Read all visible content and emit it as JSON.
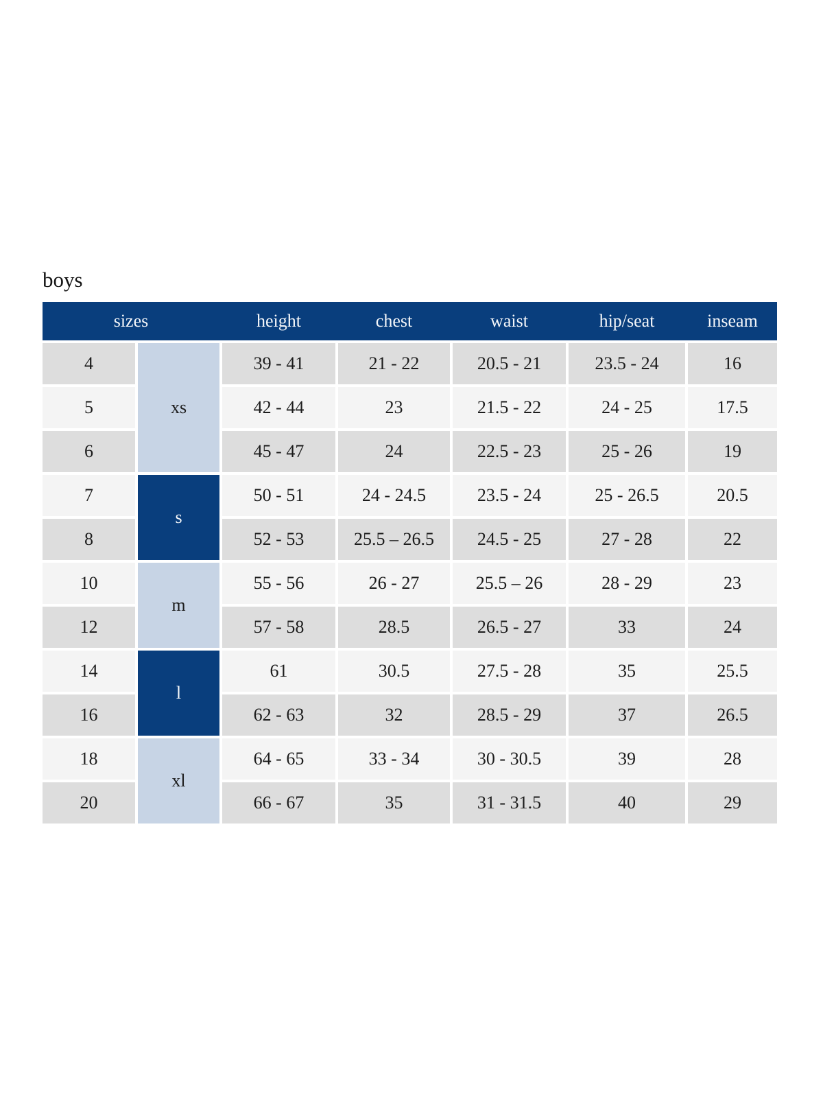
{
  "page": {
    "title": "boys"
  },
  "table": {
    "headers": [
      "sizes",
      "height",
      "chest",
      "waist",
      "hip/seat",
      "inseam"
    ],
    "groups": [
      {
        "label": "xs",
        "span": 3,
        "variant": "light"
      },
      {
        "label": "s",
        "span": 2,
        "variant": "dark"
      },
      {
        "label": "m",
        "span": 2,
        "variant": "light"
      },
      {
        "label": "l",
        "span": 2,
        "variant": "dark"
      },
      {
        "label": "xl",
        "span": 2,
        "variant": "light"
      }
    ],
    "rows": [
      {
        "size": "4",
        "cells": [
          "39 - 41",
          "21 - 22",
          "20.5 - 21",
          "23.5 - 24",
          "16"
        ]
      },
      {
        "size": "5",
        "cells": [
          "42 - 44",
          "23",
          "21.5 - 22",
          "24 - 25",
          "17.5"
        ]
      },
      {
        "size": "6",
        "cells": [
          "45 - 47",
          "24",
          "22.5 - 23",
          "25 - 26",
          "19"
        ]
      },
      {
        "size": "7",
        "cells": [
          "50 - 51",
          "24 - 24.5",
          "23.5 - 24",
          "25 - 26.5",
          "20.5"
        ]
      },
      {
        "size": "8",
        "cells": [
          "52 - 53",
          "25.5 – 26.5",
          "24.5 - 25",
          "27 - 28",
          "22"
        ]
      },
      {
        "size": "10",
        "cells": [
          "55 - 56",
          "26 - 27",
          "25.5 – 26",
          "28 - 29",
          "23"
        ]
      },
      {
        "size": "12",
        "cells": [
          "57 - 58",
          "28.5",
          "26.5 - 27",
          "33",
          "24"
        ]
      },
      {
        "size": "14",
        "cells": [
          "61",
          "30.5",
          "27.5 - 28",
          "35",
          "25.5"
        ]
      },
      {
        "size": "16",
        "cells": [
          "62 - 63",
          "32",
          "28.5 - 29",
          "37",
          "26.5"
        ]
      },
      {
        "size": "18",
        "cells": [
          "64 - 65",
          "33 - 34",
          "30 - 30.5",
          "39",
          "28"
        ]
      },
      {
        "size": "20",
        "cells": [
          "66 - 67",
          "35",
          "31 - 31.5",
          "40",
          "29"
        ]
      }
    ]
  },
  "colors": {
    "header_bg": "#093E7D",
    "group_dark_bg": "#093E7D",
    "group_light_bg": "#C7D4E5",
    "row_gray_bg": "#DDDDDD",
    "row_light_bg": "#F4F4F4",
    "header_text": "#F5F7FA",
    "body_text": "#1C1C1C"
  }
}
